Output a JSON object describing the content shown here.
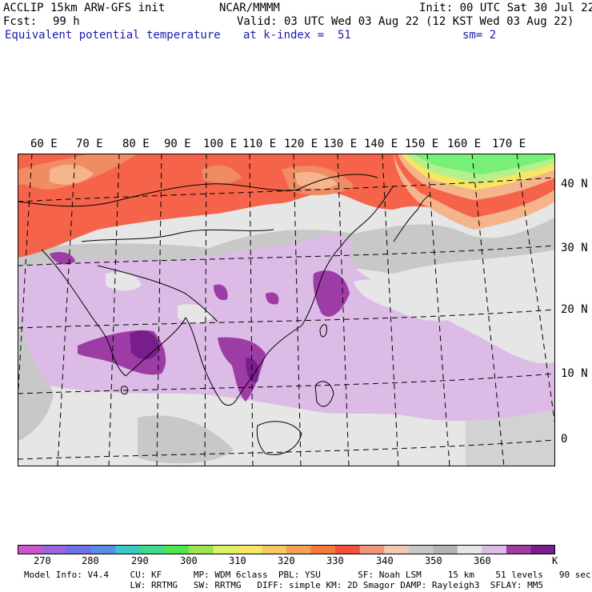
{
  "header": {
    "model_title": "ACCLIP 15km ARW-GFS init",
    "org": "NCAR/MMMM",
    "init": "Init: 00 UTC Sat 30 Jul 22",
    "fcst_label": "Fcst:",
    "fcst_value": "99 h",
    "valid": "Valid: 03 UTC Wed 03 Aug 22 (12 KST Wed 03 Aug 22)",
    "field": "Equivalent potential temperature",
    "level": "at k-index =  51",
    "smoothing": "sm= 2"
  },
  "map": {
    "longitude_labels": [
      "60 E",
      "70 E",
      "80 E",
      "90 E",
      "100 E",
      "110 E",
      "120 E",
      "130 E",
      "140 E",
      "150 E",
      "160 E",
      "170 E"
    ],
    "latitude_labels": [
      "40 N",
      "30 N",
      "20 N",
      "10 N",
      "0"
    ],
    "colors": {
      "ocean_bg": "#e6e6e6",
      "land_gray": "#c8c8c8",
      "light_purple": "#dcbce6",
      "purple": "#9e3ca6",
      "dark_purple": "#781e8c",
      "orange_red": "#f5644a",
      "orange": "#f08c64",
      "light_orange": "#f5b48c",
      "yellow": "#f5e664",
      "green": "#78f078",
      "light_green": "#b4f08c"
    }
  },
  "colorbar": {
    "unit": "K",
    "tick_labels": [
      "270",
      "280",
      "290",
      "300",
      "310",
      "320",
      "330",
      "340",
      "350",
      "360"
    ],
    "colors": [
      "#cc55cc",
      "#9966dd",
      "#6f6fe6",
      "#5a8ce6",
      "#3cc8c8",
      "#3cdc8c",
      "#50e650",
      "#9be650",
      "#dcf064",
      "#f5e664",
      "#f5c864",
      "#f5a050",
      "#f5783c",
      "#f5503c",
      "#f09678",
      "#f0c8b4",
      "#c8c8c8",
      "#b4b4b4",
      "#e6e6e6",
      "#dcbce6",
      "#a03ca0",
      "#781e8c"
    ]
  },
  "footer": {
    "line1": "Model Info: V4.4    CU: KF      MP: WDM 6class  PBL: YSU       SF: Noah LSM     15 km    51 levels   90 sec",
    "line2": "                    LW: RRTMG   SW: RRTMG   DIFF: simple KM: 2D Smagor DAMP: Rayleigh3  SFLAY: MM5"
  }
}
